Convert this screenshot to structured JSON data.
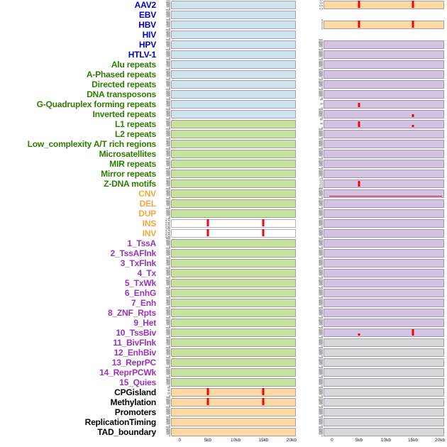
{
  "chart_data": {
    "type": "area",
    "description": "Genomic feature density tracks over a 0-20kb window; two panel columns per feature row, red vertical spikes mark signal peaks near 5kb and 15kb.",
    "x_ticks": [
      "0",
      "5kb",
      "10kb",
      "15kb",
      "20kb"
    ],
    "x_range_kb": [
      0,
      20
    ],
    "default_yticks": [
      "500",
      "400",
      "300",
      "200",
      "100",
      "0"
    ],
    "colors": {
      "panel_blue": "#cfe3ef",
      "panel_green": "#c8e3a0",
      "panel_orange": "#fdd9a6",
      "panel_purple": "#d3c4e3",
      "panel_gray": "#d8d8d8",
      "panel_white": "#ffffff",
      "spike_red": "#f30505",
      "label_blue": "#0000cc",
      "label_green": "#2e7d00",
      "label_orange": "#f5a73f",
      "label_purple": "#9933bb",
      "label_black": "#000000"
    },
    "rows": [
      {
        "label": "AAV2",
        "color": "label_blue",
        "left": {
          "bg": "panel_blue"
        },
        "right": {
          "bg": "panel_orange",
          "yticks": [
            "1.5",
            "1.0",
            "0.5",
            "0.0"
          ],
          "spikes": [
            {
              "pos": 0.25,
              "h": 1
            },
            {
              "pos": 0.75,
              "h": 1
            }
          ]
        }
      },
      {
        "label": "EBV",
        "color": "label_blue",
        "left": {
          "bg": "panel_blue"
        },
        "right": null
      },
      {
        "label": "HBV",
        "color": "label_blue",
        "left": {
          "bg": "panel_blue"
        },
        "right": {
          "bg": "panel_orange",
          "yticks": [
            "4",
            "3",
            "2",
            "1",
            "0"
          ],
          "spikes": [
            {
              "pos": 0.25,
              "h": 1
            },
            {
              "pos": 0.75,
              "h": 1
            }
          ]
        }
      },
      {
        "label": "HIV",
        "color": "label_blue",
        "left": {
          "bg": "panel_blue"
        },
        "right": null
      },
      {
        "label": "HPV",
        "color": "label_blue",
        "left": {
          "bg": "panel_blue"
        },
        "right": {
          "bg": "panel_purple"
        }
      },
      {
        "label": "HTLV-1",
        "color": "label_blue",
        "left": {
          "bg": "panel_blue"
        },
        "right": {
          "bg": "panel_purple"
        }
      },
      {
        "label": "Alu repeats",
        "color": "label_green",
        "left": {
          "bg": "panel_blue"
        },
        "right": {
          "bg": "panel_purple"
        }
      },
      {
        "label": "A-Phased repeats",
        "color": "label_green",
        "left": {
          "bg": "panel_blue"
        },
        "right": {
          "bg": "panel_purple"
        }
      },
      {
        "label": "Directed repeats",
        "color": "label_green",
        "left": {
          "bg": "panel_blue"
        },
        "right": {
          "bg": "panel_purple"
        }
      },
      {
        "label": "DNA transposons",
        "color": "label_green",
        "left": {
          "bg": "panel_blue"
        },
        "right": {
          "bg": "panel_purple"
        }
      },
      {
        "label": "G-Quadruplex forming repeats",
        "color": "label_green",
        "left": {
          "bg": "panel_blue"
        },
        "right": {
          "bg": "panel_purple",
          "yticks": [
            "40",
            "20",
            "0"
          ],
          "spikes": [
            {
              "pos": 0.25,
              "h": 0.65
            }
          ]
        }
      },
      {
        "label": "Inverted repeats",
        "color": "label_green",
        "left": {
          "bg": "panel_blue"
        },
        "right": {
          "bg": "panel_purple",
          "spikes": [
            {
              "pos": 0.75,
              "h": 0.4
            }
          ]
        }
      },
      {
        "label": "L1 repeats",
        "color": "label_green",
        "left": {
          "bg": "panel_green"
        },
        "right": {
          "bg": "panel_purple",
          "yticks": [
            "80",
            "40",
            "0"
          ],
          "spikes": [
            {
              "pos": 0.25,
              "h": 0.8
            },
            {
              "pos": 0.75,
              "h": 0.35
            }
          ]
        }
      },
      {
        "label": "L2 repeats",
        "color": "label_green",
        "left": {
          "bg": "panel_green"
        },
        "right": {
          "bg": "panel_purple"
        }
      },
      {
        "label": "Low_complexity A/T rich regions",
        "color": "label_green",
        "left": {
          "bg": "panel_green"
        },
        "right": {
          "bg": "panel_purple"
        }
      },
      {
        "label": "Microsatellites",
        "color": "label_green",
        "left": {
          "bg": "panel_green"
        },
        "right": {
          "bg": "panel_purple"
        }
      },
      {
        "label": "MIR repeats",
        "color": "label_green",
        "left": {
          "bg": "panel_green"
        },
        "right": {
          "bg": "panel_purple"
        }
      },
      {
        "label": "Mirror repeats",
        "color": "label_green",
        "left": {
          "bg": "panel_green"
        },
        "right": {
          "bg": "panel_purple"
        }
      },
      {
        "label": "Z-DNA motifs",
        "color": "label_green",
        "left": {
          "bg": "panel_green"
        },
        "right": {
          "bg": "panel_purple",
          "yticks": [
            "2.0",
            "1.5",
            "1.0",
            "0.5",
            "0.0"
          ],
          "spikes": [
            {
              "pos": 0.25,
              "h": 0.85
            }
          ]
        }
      },
      {
        "label": "CNV",
        "color": "label_orange",
        "left": {
          "bg": "panel_green"
        },
        "right": {
          "bg": "panel_purple",
          "hline": true
        }
      },
      {
        "label": "DEL",
        "color": "label_orange",
        "left": {
          "bg": "panel_green"
        },
        "right": {
          "bg": "panel_purple"
        }
      },
      {
        "label": "DUP",
        "color": "label_orange",
        "left": {
          "bg": "panel_green"
        },
        "right": {
          "bg": "panel_purple"
        }
      },
      {
        "label": "INS",
        "color": "label_orange",
        "left": {
          "bg": "panel_white",
          "yticks": [
            "1.00",
            "0.75",
            "0.50",
            "0.25",
            "0.00"
          ],
          "spikes": [
            {
              "pos": 0.25,
              "h": 1
            },
            {
              "pos": 0.75,
              "h": 1
            }
          ]
        },
        "right": {
          "bg": "panel_purple"
        }
      },
      {
        "label": "INV",
        "color": "label_orange",
        "left": {
          "bg": "panel_white",
          "yticks": [
            "1.00",
            "0.75",
            "0.50",
            "0.25",
            "0.00"
          ],
          "spikes": [
            {
              "pos": 0.25,
              "h": 1
            },
            {
              "pos": 0.75,
              "h": 1
            }
          ]
        },
        "right": {
          "bg": "panel_purple"
        }
      },
      {
        "label": "1_TssA",
        "color": "label_purple",
        "left": {
          "bg": "panel_green"
        },
        "right": {
          "bg": "panel_purple"
        }
      },
      {
        "label": "2_TssAFlnk",
        "color": "label_purple",
        "left": {
          "bg": "panel_green"
        },
        "right": {
          "bg": "panel_purple"
        }
      },
      {
        "label": "3_TxFlnk",
        "color": "label_purple",
        "left": {
          "bg": "panel_green"
        },
        "right": {
          "bg": "panel_purple"
        }
      },
      {
        "label": "4_Tx",
        "color": "label_purple",
        "left": {
          "bg": "panel_green"
        },
        "right": {
          "bg": "panel_purple"
        }
      },
      {
        "label": "5_TxWk",
        "color": "label_purple",
        "left": {
          "bg": "panel_green"
        },
        "right": {
          "bg": "panel_purple"
        }
      },
      {
        "label": "6_EnhG",
        "color": "label_purple",
        "left": {
          "bg": "panel_green"
        },
        "right": {
          "bg": "panel_purple"
        }
      },
      {
        "label": "7_Enh",
        "color": "label_purple",
        "left": {
          "bg": "panel_green"
        },
        "right": {
          "bg": "panel_purple"
        }
      },
      {
        "label": "8_ZNF_Rpts",
        "color": "label_purple",
        "left": {
          "bg": "panel_green"
        },
        "right": {
          "bg": "panel_purple"
        }
      },
      {
        "label": "9_Het",
        "color": "label_purple",
        "left": {
          "bg": "panel_green"
        },
        "right": {
          "bg": "panel_purple"
        }
      },
      {
        "label": "10_TssBiv",
        "color": "label_purple",
        "left": {
          "bg": "panel_green"
        },
        "right": {
          "bg": "panel_purple",
          "spikes": [
            {
              "pos": 0.25,
              "h": 0.35
            },
            {
              "pos": 0.75,
              "h": 0.95
            }
          ]
        }
      },
      {
        "label": "11_BivFlnk",
        "color": "label_purple",
        "left": {
          "bg": "panel_green"
        },
        "right": {
          "bg": "panel_gray"
        }
      },
      {
        "label": "12_EnhBiv",
        "color": "label_purple",
        "left": {
          "bg": "panel_green"
        },
        "right": {
          "bg": "panel_gray"
        }
      },
      {
        "label": "13_ReprPC",
        "color": "label_purple",
        "left": {
          "bg": "panel_green"
        },
        "right": {
          "bg": "panel_gray"
        }
      },
      {
        "label": "14_ReprPCWk",
        "color": "label_purple",
        "left": {
          "bg": "panel_green"
        },
        "right": {
          "bg": "panel_gray"
        }
      },
      {
        "label": "15_Quies",
        "color": "label_purple",
        "left": {
          "bg": "panel_green"
        },
        "right": {
          "bg": "panel_gray"
        }
      },
      {
        "label": "CPGisland",
        "color": "label_black",
        "left": {
          "bg": "panel_orange",
          "yticks": [
            "60",
            "40",
            "20",
            "0"
          ],
          "spikes": [
            {
              "pos": 0.25,
              "h": 1
            },
            {
              "pos": 0.75,
              "h": 1
            }
          ]
        },
        "right": {
          "bg": "panel_gray"
        }
      },
      {
        "label": "Methylation",
        "color": "label_black",
        "left": {
          "bg": "panel_orange",
          "spikes": [
            {
              "pos": 0.25,
              "h": 1
            },
            {
              "pos": 0.75,
              "h": 1
            }
          ]
        },
        "right": {
          "bg": "panel_gray"
        }
      },
      {
        "label": "Promoters",
        "color": "label_black",
        "left": {
          "bg": "panel_orange"
        },
        "right": {
          "bg": "panel_gray"
        }
      },
      {
        "label": "ReplicationTiming",
        "color": "label_black",
        "left": {
          "bg": "panel_orange"
        },
        "right": {
          "bg": "panel_gray"
        }
      },
      {
        "label": "TAD_boundary",
        "color": "label_black",
        "left": {
          "bg": "panel_orange"
        },
        "right": {
          "bg": "panel_gray"
        }
      }
    ]
  }
}
